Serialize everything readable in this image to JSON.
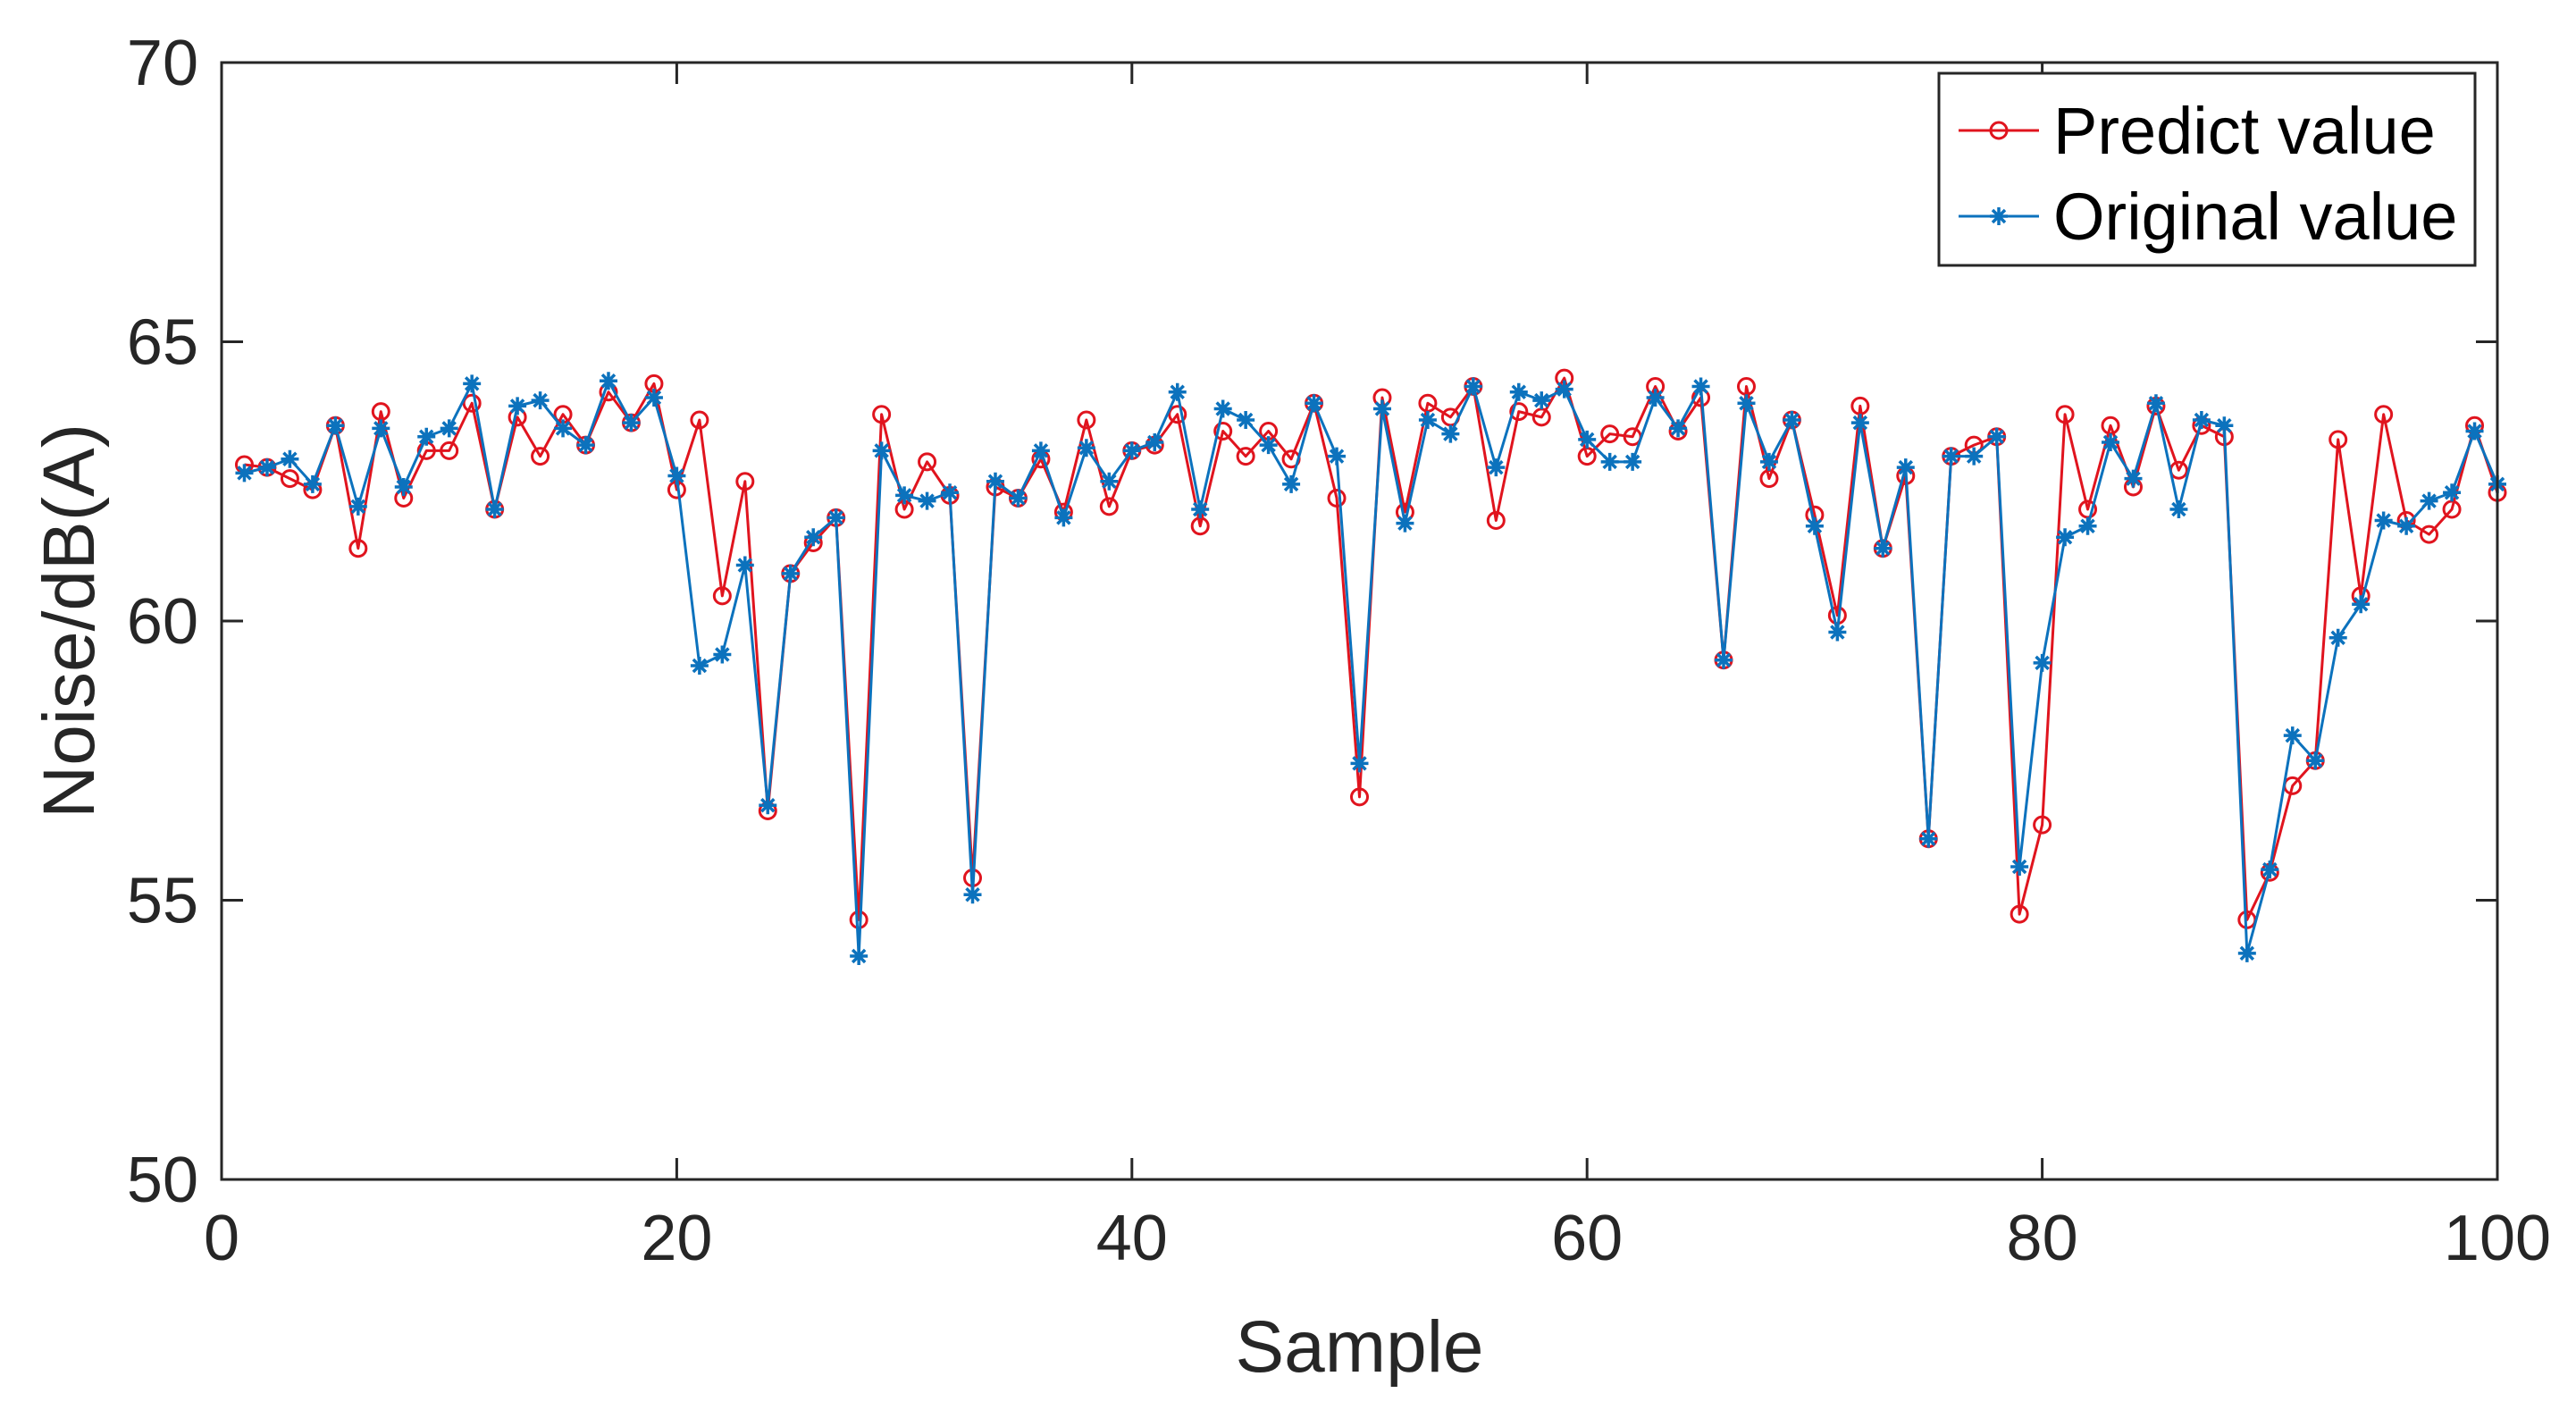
{
  "chart_data": {
    "type": "line",
    "title": "",
    "xlabel": "Sample",
    "ylabel": "Noise/dB(A)",
    "xlim": [
      0,
      100
    ],
    "ylim": [
      50,
      70
    ],
    "xticks": [
      0,
      20,
      40,
      60,
      80,
      100
    ],
    "yticks": [
      50,
      55,
      60,
      65,
      70
    ],
    "grid": false,
    "box": true,
    "legend_position": "top-right",
    "x": [
      1,
      2,
      3,
      4,
      5,
      6,
      7,
      8,
      9,
      10,
      11,
      12,
      13,
      14,
      15,
      16,
      17,
      18,
      19,
      20,
      21,
      22,
      23,
      24,
      25,
      26,
      27,
      28,
      29,
      30,
      31,
      32,
      33,
      34,
      35,
      36,
      37,
      38,
      39,
      40,
      41,
      42,
      43,
      44,
      45,
      46,
      47,
      48,
      49,
      50,
      51,
      52,
      53,
      54,
      55,
      56,
      57,
      58,
      59,
      60,
      61,
      62,
      63,
      64,
      65,
      66,
      67,
      68,
      69,
      70,
      71,
      72,
      73,
      74,
      75,
      76,
      77,
      78,
      79,
      80,
      81,
      82,
      83,
      84,
      85,
      86,
      87,
      88,
      89,
      90,
      91,
      92,
      93,
      94,
      95,
      96,
      97,
      98,
      99,
      100
    ],
    "series": [
      {
        "name": "Predict value",
        "color": "#e0141e",
        "marker": "circle",
        "values": [
          62.8,
          62.75,
          62.55,
          62.35,
          63.5,
          61.3,
          63.75,
          62.2,
          63.05,
          63.05,
          63.9,
          62.0,
          63.65,
          62.95,
          63.7,
          63.15,
          64.1,
          63.55,
          64.25,
          62.35,
          63.6,
          60.45,
          62.5,
          56.6,
          60.85,
          61.4,
          61.85,
          54.65,
          63.7,
          62.0,
          62.85,
          62.25,
          55.4,
          62.4,
          62.2,
          62.9,
          61.95,
          63.6,
          62.05,
          63.05,
          63.15,
          63.7,
          61.7,
          63.4,
          62.95,
          63.4,
          62.9,
          63.9,
          62.2,
          56.85,
          64.0,
          61.95,
          63.9,
          63.65,
          64.2,
          61.8,
          63.75,
          63.65,
          64.35,
          62.95,
          63.35,
          63.3,
          64.2,
          63.4,
          64.0,
          59.3,
          64.2,
          62.55,
          63.6,
          61.9,
          60.1,
          63.85,
          61.3,
          62.6,
          56.1,
          62.95,
          63.15,
          63.3,
          54.75,
          56.35,
          63.7,
          62.0,
          63.5,
          62.4,
          63.85,
          62.7,
          63.5,
          63.3,
          54.65,
          55.5,
          57.05,
          57.5,
          63.25,
          60.45,
          63.7,
          61.8,
          61.55,
          62.0,
          63.5,
          62.3
        ]
      },
      {
        "name": "Original value",
        "color": "#0c72bd",
        "marker": "asterisk",
        "values": [
          62.65,
          62.75,
          62.9,
          62.45,
          63.5,
          62.05,
          63.45,
          62.4,
          63.3,
          63.45,
          64.25,
          62.0,
          63.85,
          63.95,
          63.45,
          63.15,
          64.3,
          63.55,
          64.0,
          62.6,
          59.2,
          59.4,
          61.0,
          56.7,
          60.85,
          61.5,
          61.85,
          54.0,
          63.05,
          62.25,
          62.15,
          62.3,
          55.1,
          62.5,
          62.2,
          63.05,
          61.85,
          63.1,
          62.5,
          63.05,
          63.2,
          64.1,
          62.0,
          63.8,
          63.6,
          63.15,
          62.45,
          63.9,
          62.95,
          57.45,
          63.8,
          61.75,
          63.6,
          63.35,
          64.2,
          62.75,
          64.1,
          63.95,
          64.15,
          63.25,
          62.85,
          62.85,
          64.0,
          63.45,
          64.2,
          59.3,
          63.9,
          62.85,
          63.6,
          61.7,
          59.8,
          63.55,
          61.3,
          62.75,
          56.1,
          62.95,
          62.95,
          63.3,
          55.6,
          59.25,
          61.5,
          61.7,
          63.2,
          62.55,
          63.9,
          62.0,
          63.6,
          63.5,
          54.05,
          55.55,
          57.95,
          57.5,
          59.7,
          60.3,
          61.8,
          61.7,
          62.15,
          62.3,
          63.4,
          62.45
        ]
      }
    ]
  }
}
